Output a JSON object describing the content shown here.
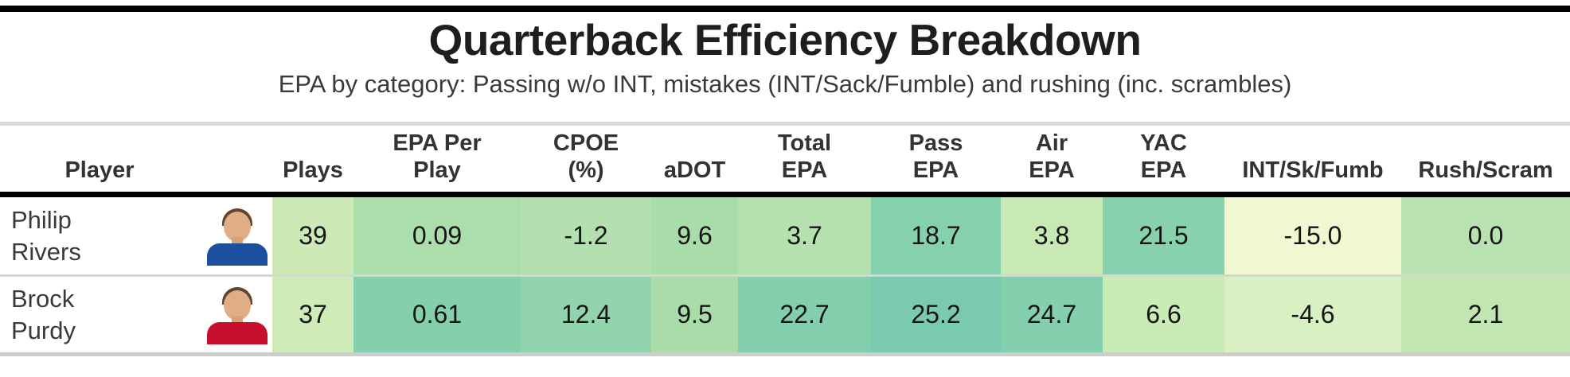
{
  "title": "Quarterback Efficiency Breakdown",
  "subtitle": "EPA by category: Passing w/o INT, mistakes (INT/Sack/Fumble) and rushing (inc. scrambles)",
  "accent_bar_color": "#000000",
  "columns": {
    "player": "Player",
    "plays": "Plays",
    "epa_per_play": "EPA Per\nPlay",
    "cpoe": "CPOE\n(%)",
    "adot": "aDOT",
    "total_epa": "Total\nEPA",
    "pass_epa": "Pass\nEPA",
    "air_epa": "Air\nEPA",
    "yac_epa": "YAC\nEPA",
    "int_sk_fumb": "INT/Sk/Fumb",
    "rush_scram": "Rush/Scram"
  },
  "rows": [
    {
      "first_name": "Philip",
      "last_name": "Rivers",
      "headshot": "philip-rivers-headshot",
      "jersey_color": "#1d4fa1",
      "cells": {
        "plays": {
          "value": "39",
          "bg": "#cdeab6"
        },
        "epa_per_play": {
          "value": "0.09",
          "bg": "#abdeaa"
        },
        "cpoe": {
          "value": "-1.2",
          "bg": "#b3e0ae"
        },
        "adot": {
          "value": "9.6",
          "bg": "#a8dca8"
        },
        "total_epa": {
          "value": "3.7",
          "bg": "#b4e1ae"
        },
        "pass_epa": {
          "value": "18.7",
          "bg": "#85d0ad"
        },
        "air_epa": {
          "value": "3.8",
          "bg": "#c8e9b5"
        },
        "yac_epa": {
          "value": "21.5",
          "bg": "#88d1ad"
        },
        "int_sk_fumb": {
          "value": "-15.0",
          "bg": "#f1f7d1"
        },
        "rush_scram": {
          "value": "0.0",
          "bg": "#b8e2b0"
        }
      }
    },
    {
      "first_name": "Brock",
      "last_name": "Purdy",
      "headshot": "brock-purdy-headshot",
      "jersey_color": "#c8102e",
      "cells": {
        "plays": {
          "value": "37",
          "bg": "#cfecb8"
        },
        "epa_per_play": {
          "value": "0.61",
          "bg": "#84cfac"
        },
        "cpoe": {
          "value": "12.4",
          "bg": "#92d4ae"
        },
        "adot": {
          "value": "9.5",
          "bg": "#a9dca9"
        },
        "total_epa": {
          "value": "22.7",
          "bg": "#82cead"
        },
        "pass_epa": {
          "value": "25.2",
          "bg": "#7acaaf"
        },
        "air_epa": {
          "value": "24.7",
          "bg": "#84cfae"
        },
        "yac_epa": {
          "value": "6.6",
          "bg": "#c9ebb6"
        },
        "int_sk_fumb": {
          "value": "-4.6",
          "bg": "#d9f0c3"
        },
        "rush_scram": {
          "value": "2.1",
          "bg": "#c2e6b2"
        }
      }
    }
  ],
  "chart_data": {
    "type": "table",
    "title": "Quarterback Efficiency Breakdown",
    "subtitle": "EPA by category: Passing w/o INT, mistakes (INT/Sack/Fumble) and rushing (inc. scrambles)",
    "columns": [
      "Player",
      "Plays",
      "EPA Per Play",
      "CPOE (%)",
      "aDOT",
      "Total EPA",
      "Pass EPA",
      "Air EPA",
      "YAC EPA",
      "INT/Sk/Fumb",
      "Rush/Scram"
    ],
    "rows": [
      {
        "player": "Philip Rivers",
        "plays": 39,
        "epa_per_play": 0.09,
        "cpoe_pct": -1.2,
        "adot": 9.6,
        "total_epa": 3.7,
        "pass_epa": 18.7,
        "air_epa": 3.8,
        "yac_epa": 21.5,
        "int_sk_fumb": -15.0,
        "rush_scram": 0.0
      },
      {
        "player": "Brock Purdy",
        "plays": 37,
        "epa_per_play": 0.61,
        "cpoe_pct": 12.4,
        "adot": 9.5,
        "total_epa": 22.7,
        "pass_epa": 25.2,
        "air_epa": 24.7,
        "yac_epa": 6.6,
        "int_sk_fumb": -4.6,
        "rush_scram": 2.1
      }
    ],
    "layout": {
      "heatmap": "per-cell green color scale: pale yellow = low value, teal-green = high value",
      "heatmap_low_color": "#f1f7d1",
      "heatmap_high_color": "#7acaaf"
    }
  }
}
